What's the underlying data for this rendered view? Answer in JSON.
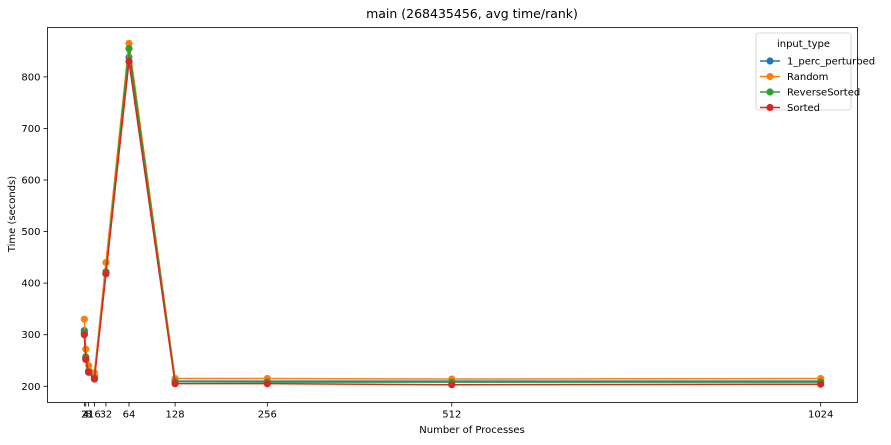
{
  "chart_data": {
    "type": "line",
    "title": "main (268435456, avg time/rank)",
    "xlabel": "Number of Processes",
    "ylabel": "Time (seconds)",
    "x": [
      2,
      4,
      8,
      16,
      32,
      64,
      128,
      256,
      512,
      1024
    ],
    "xticks": [
      2,
      4,
      8,
      16,
      32,
      64,
      128,
      256,
      512,
      1024
    ],
    "yticks": [
      200,
      300,
      400,
      500,
      600,
      700,
      800
    ],
    "xlim": [
      -49.1,
      1075.1
    ],
    "ylim": [
      168.5,
      895.8
    ],
    "grid": false,
    "legend": {
      "title": "input_type",
      "placement": "top-right"
    },
    "series": [
      {
        "name": "1_perc_perturbed",
        "color": "#1f77b4",
        "values": [
          308,
          257,
          230,
          218,
          420,
          838,
          210,
          210,
          210,
          210
        ]
      },
      {
        "name": "Random",
        "color": "#ff7f0e",
        "values": [
          330,
          272,
          240,
          226,
          440,
          865,
          215,
          215,
          214,
          215
        ]
      },
      {
        "name": "ReverseSorted",
        "color": "#2ca02c",
        "values": [
          304,
          255,
          228,
          216,
          422,
          855,
          209,
          208,
          208,
          208
        ]
      },
      {
        "name": "Sorted",
        "color": "#d62728",
        "values": [
          300,
          252,
          227,
          214,
          418,
          830,
          205,
          205,
          203,
          204
        ]
      }
    ]
  }
}
